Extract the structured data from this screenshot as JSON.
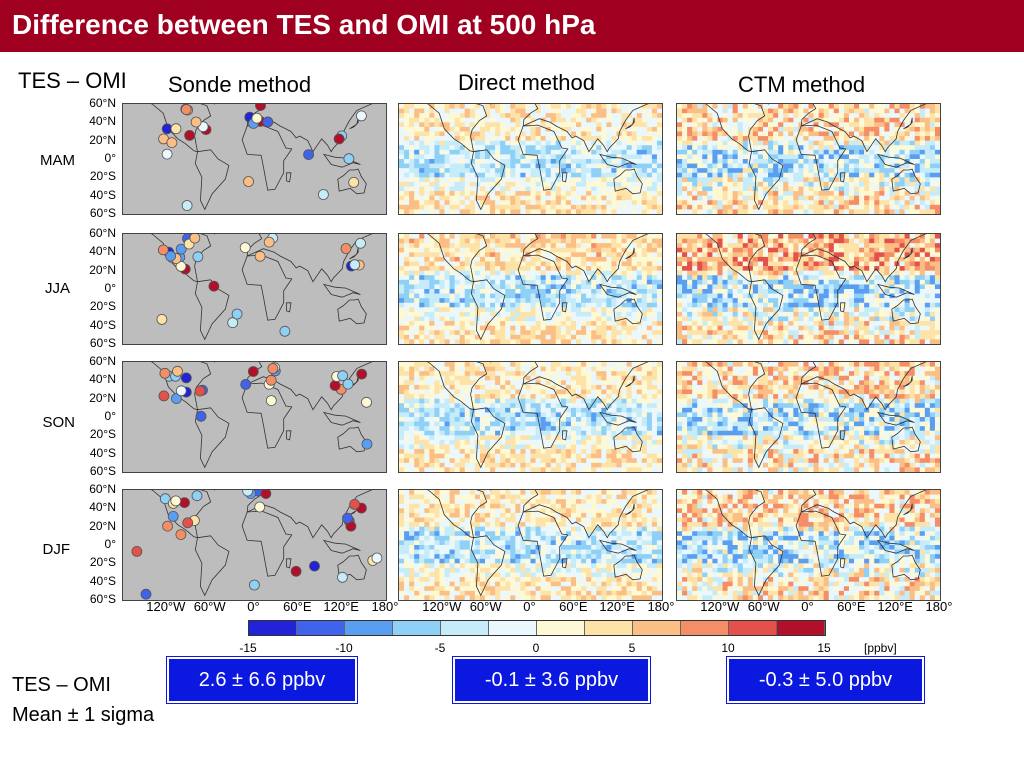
{
  "title": "Difference between TES and OMI at 500 hPa",
  "corner_label": "TES – OMI",
  "methods": [
    "Sonde method",
    "Direct method",
    "CTM method"
  ],
  "seasons": [
    "MAM",
    "JJA",
    "SON",
    "DJF"
  ],
  "lat_ticks": [
    "60°N",
    "40°N",
    "20°N",
    "0°",
    "20°S",
    "40°S",
    "60°S"
  ],
  "lon_ticks": [
    "120°W",
    "60°W",
    "0°",
    "60°E",
    "120°E",
    "180°"
  ],
  "colorbar": {
    "ticks": [
      "-15",
      "-10",
      "-5",
      "0",
      "5",
      "10",
      "15"
    ],
    "unit": "[ppbv]",
    "colors": [
      "#2222d6",
      "#3f63ea",
      "#5a9ef2",
      "#8fd0f6",
      "#c6ecfa",
      "#eaf7fc",
      "#fdf9d6",
      "#fde3a8",
      "#fbbf86",
      "#f58d66",
      "#e4504a",
      "#b2102a"
    ]
  },
  "stats": [
    "2.6 ± 6.6 ppbv",
    "-0.1 ± 3.6 ppbv",
    "-0.3 ± 5.0 ppbv"
  ],
  "footer": {
    "line1": "TES – OMI",
    "line2": "Mean ± 1 sigma"
  },
  "colors": {
    "title_bar": "#a00020",
    "stat_box": "#0a18e0",
    "sonde_bg": "#bdbdbd"
  }
}
